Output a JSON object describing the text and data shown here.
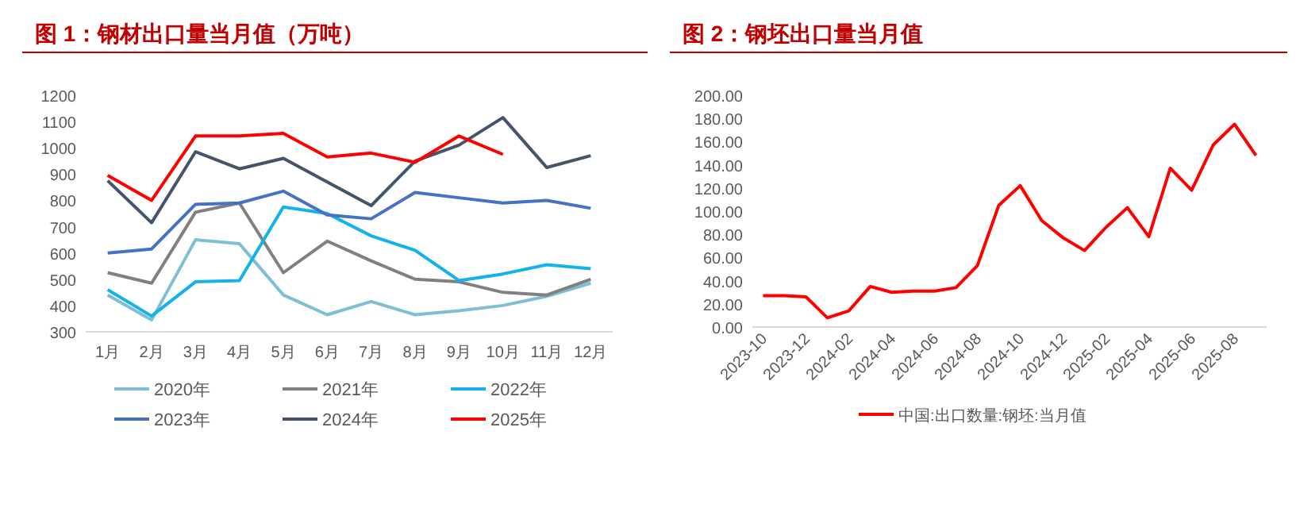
{
  "chart_data": [
    {
      "type": "line",
      "title": "图 1：钢材出口量当月值（万吨）",
      "categories": [
        "1月",
        "2月",
        "3月",
        "4月",
        "5月",
        "6月",
        "7月",
        "8月",
        "9月",
        "10月",
        "11月",
        "12月"
      ],
      "ylim": [
        300,
        1200
      ],
      "yticks": [
        300,
        400,
        500,
        600,
        700,
        800,
        900,
        1000,
        1100,
        1200
      ],
      "grid": false,
      "legend": "bottom",
      "marker": "none",
      "line_style": "solid",
      "series": [
        {
          "name": "2020年",
          "color": "#7fbfd6",
          "values": [
            440,
            345,
            650,
            635,
            440,
            365,
            415,
            365,
            380,
            400,
            435,
            485
          ]
        },
        {
          "name": "2021年",
          "color": "#808080",
          "values": [
            525,
            485,
            755,
            790,
            525,
            645,
            570,
            500,
            490,
            450,
            440,
            500
          ]
        },
        {
          "name": "2022年",
          "color": "#13b2ea",
          "values": [
            460,
            360,
            490,
            495,
            775,
            750,
            665,
            610,
            495,
            520,
            555,
            540
          ]
        },
        {
          "name": "2023年",
          "color": "#4472c4",
          "values": [
            600,
            615,
            785,
            790,
            835,
            745,
            730,
            830,
            810,
            790,
            800,
            770
          ]
        },
        {
          "name": "2024年",
          "color": "#44546a",
          "values": [
            875,
            715,
            985,
            920,
            960,
            870,
            780,
            950,
            1010,
            1115,
            925,
            970
          ]
        },
        {
          "name": "2025年",
          "color": "#ff0000",
          "values": [
            895,
            800,
            1045,
            1045,
            1055,
            965,
            980,
            945,
            1045,
            975,
            null,
            null
          ]
        }
      ]
    },
    {
      "type": "line",
      "title": "图 2：钢坯出口量当月值",
      "categories": [
        "2023-10",
        null,
        "2023-12",
        null,
        "2024-02",
        null,
        "2024-04",
        null,
        "2024-06",
        null,
        "2024-08",
        null,
        "2024-10",
        null,
        "2024-12",
        null,
        "2025-02",
        null,
        "2025-04",
        null,
        "2025-06",
        null,
        "2025-08",
        null
      ],
      "ylim": [
        0,
        200
      ],
      "yticks": [
        {
          "value": 0,
          "label": "0.00"
        },
        {
          "value": 20,
          "label": "20.00"
        },
        {
          "value": 40,
          "label": "40.00"
        },
        {
          "value": 60,
          "label": "60.00"
        },
        {
          "value": 80,
          "label": "80.00"
        },
        {
          "value": 100,
          "label": "100.00"
        },
        {
          "value": 120,
          "label": "120.00"
        },
        {
          "value": 140,
          "label": "140.00"
        },
        {
          "value": 160,
          "label": "160.00"
        },
        {
          "value": 180,
          "label": "180.00"
        },
        {
          "value": 200,
          "label": "200.00"
        }
      ],
      "grid": false,
      "legend": "bottom",
      "marker": "none",
      "line_style": "solid",
      "series": [
        {
          "name": "中国:出口数量:钢坯:当月值",
          "color": "#ff0000",
          "values": [
            27,
            27,
            26,
            8,
            14,
            35,
            30,
            31,
            31,
            34,
            53,
            105,
            122,
            92,
            77,
            66,
            86,
            103,
            78,
            137,
            118,
            157,
            175,
            148
          ]
        }
      ]
    }
  ]
}
